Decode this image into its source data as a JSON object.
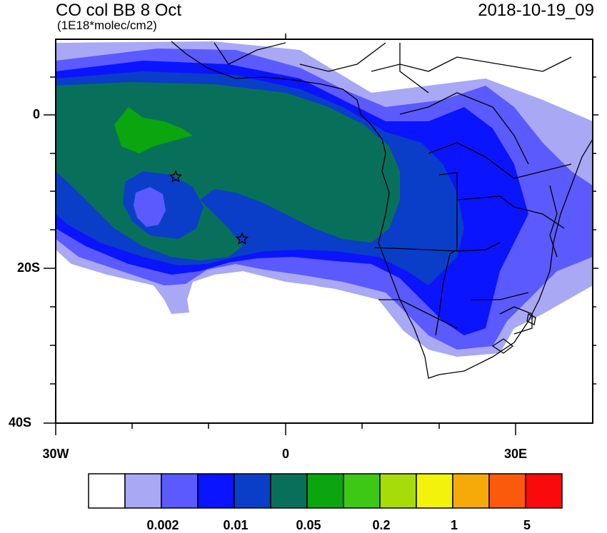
{
  "header": {
    "title": "CO col BB 8 Oct",
    "subtitle": "(1E18*molec/cm2)",
    "timestamp": "2018-10-19_09"
  },
  "axes": {
    "lat_labels": [
      "0",
      "20S",
      "40S"
    ],
    "lon_labels": [
      "30W",
      "0",
      "30E"
    ]
  },
  "colorbar": {
    "colors": [
      "#ffffff",
      "#a8a8f5",
      "#5a5aff",
      "#0a14ff",
      "#0a3ec8",
      "#08705a",
      "#0aa50f",
      "#3cc814",
      "#a6dc0a",
      "#f2f20a",
      "#f5aa0a",
      "#fa5a0a",
      "#fa0a0a"
    ],
    "labels": [
      "0.002",
      "0.01",
      "0.05",
      "0.2",
      "1",
      "5"
    ]
  },
  "markers": {
    "site_symbol": "star-icon"
  }
}
